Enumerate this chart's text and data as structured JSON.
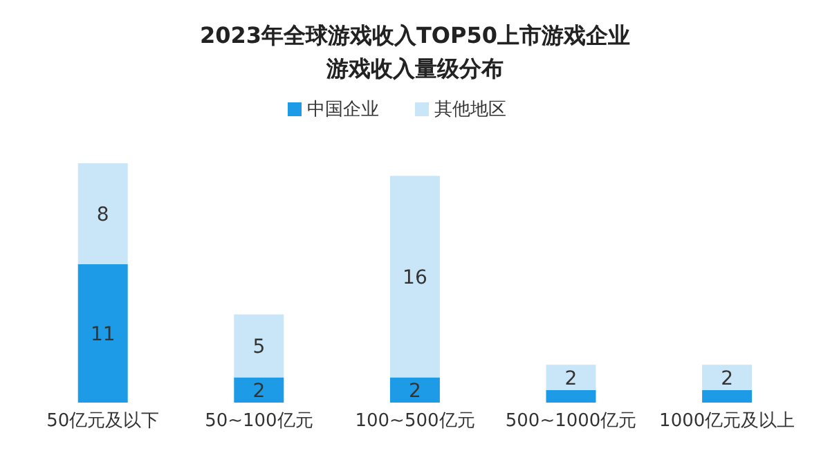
{
  "chart_data": {
    "type": "bar",
    "title": "2023年全球游戏收入TOP50上市游戏企业",
    "subtitle": "游戏收入量级分布",
    "categories": [
      "50亿元及以下",
      "50~100亿元",
      "100~500亿元",
      "500~1000亿元",
      "1000亿元及以上"
    ],
    "stacked": true,
    "legend": "top",
    "series": [
      {
        "name": "中国企业",
        "color": "#1e9be6",
        "values": [
          11,
          2,
          2,
          1,
          1
        ],
        "value_labels": [
          "11",
          "2",
          "2",
          null,
          null
        ]
      },
      {
        "name": "其他地区",
        "color": "#c9e6f8",
        "values": [
          8,
          5,
          16,
          2,
          2
        ],
        "value_labels": [
          "8",
          "5",
          "16",
          "2",
          "2"
        ]
      }
    ]
  }
}
